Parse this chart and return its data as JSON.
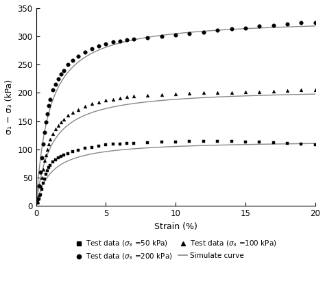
{
  "title": "",
  "xlabel": "Strain (%)",
  "ylabel": "σ₁ − σ₃ (kPa)",
  "xlim": [
    0,
    20
  ],
  "ylim": [
    0,
    350
  ],
  "xticks": [
    0,
    5,
    10,
    15,
    20
  ],
  "yticks": [
    0,
    50,
    100,
    150,
    200,
    250,
    300,
    350
  ],
  "curve_color": "#888888",
  "bg_color": "#ffffff",
  "sigma50_x": [
    0.1,
    0.2,
    0.3,
    0.4,
    0.5,
    0.6,
    0.7,
    0.8,
    0.9,
    1.0,
    1.2,
    1.4,
    1.6,
    1.8,
    2.0,
    2.3,
    2.6,
    3.0,
    3.5,
    4.0,
    4.5,
    5.0,
    5.5,
    6.0,
    6.5,
    7.0,
    8.0,
    9.0,
    10.0,
    11.0,
    12.0,
    13.0,
    14.0,
    15.0,
    16.0,
    17.0,
    18.0,
    19.0,
    20.0
  ],
  "sigma50_y": [
    5,
    12,
    20,
    30,
    40,
    48,
    56,
    62,
    68,
    72,
    78,
    82,
    85,
    88,
    90,
    93,
    96,
    99,
    102,
    104,
    106,
    108,
    109,
    110,
    111,
    111,
    112,
    113,
    113,
    114,
    114,
    114,
    115,
    113,
    113,
    112,
    111,
    109,
    108
  ],
  "sigma100_x": [
    0.1,
    0.2,
    0.3,
    0.4,
    0.5,
    0.6,
    0.7,
    0.8,
    0.9,
    1.0,
    1.2,
    1.4,
    1.6,
    1.8,
    2.0,
    2.3,
    2.6,
    3.0,
    3.5,
    4.0,
    4.5,
    5.0,
    5.5,
    6.0,
    6.5,
    7.0,
    8.0,
    9.0,
    10.0,
    11.0,
    12.0,
    13.0,
    14.0,
    15.0,
    16.0,
    17.0,
    18.0,
    19.0,
    20.0
  ],
  "sigma100_y": [
    8,
    20,
    35,
    50,
    65,
    80,
    90,
    100,
    110,
    118,
    128,
    136,
    142,
    148,
    153,
    160,
    165,
    170,
    176,
    181,
    184,
    187,
    189,
    191,
    193,
    194,
    196,
    197,
    198,
    199,
    200,
    201,
    201,
    202,
    202,
    203,
    204,
    205,
    205
  ],
  "sigma200_x": [
    0.1,
    0.2,
    0.3,
    0.4,
    0.5,
    0.6,
    0.7,
    0.8,
    0.9,
    1.0,
    1.2,
    1.4,
    1.6,
    1.8,
    2.0,
    2.3,
    2.6,
    3.0,
    3.5,
    4.0,
    4.5,
    5.0,
    5.5,
    6.0,
    6.5,
    7.0,
    8.0,
    9.0,
    10.0,
    11.0,
    12.0,
    13.0,
    14.0,
    15.0,
    16.0,
    17.0,
    18.0,
    19.0,
    20.0
  ],
  "sigma200_y": [
    12,
    35,
    60,
    85,
    110,
    130,
    148,
    163,
    177,
    188,
    205,
    215,
    225,
    233,
    240,
    250,
    258,
    265,
    272,
    278,
    283,
    287,
    290,
    292,
    294,
    295,
    298,
    300,
    302,
    305,
    308,
    311,
    313,
    315,
    318,
    320,
    322,
    324,
    325
  ],
  "sim50_params": [
    0.009,
    0.0086
  ],
  "sim100_params": [
    0.005,
    0.0048
  ],
  "sim200_params": [
    0.0028,
    0.003
  ]
}
